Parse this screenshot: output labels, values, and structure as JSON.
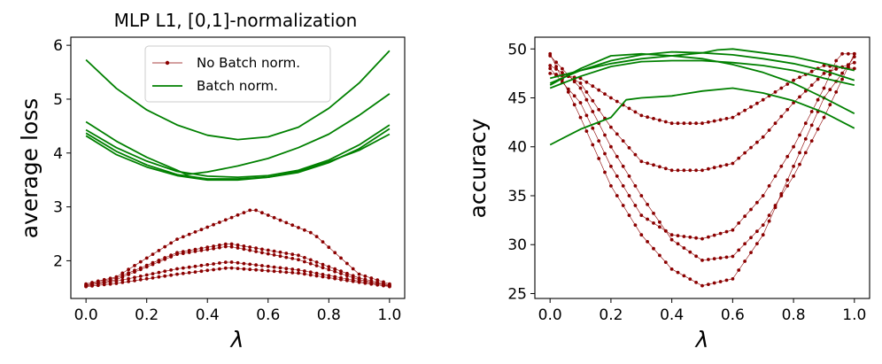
{
  "colors": {
    "no_bn": "#8b0000",
    "bn": "#008000"
  },
  "chart_data": [
    {
      "type": "line",
      "title": "MLP L1, [0,1]-normalization",
      "xlabel": "λ",
      "ylabel": "average loss",
      "xlim": [
        -0.05,
        1.05
      ],
      "ylim": [
        1.3,
        6.15
      ],
      "xticks": [
        "0.0",
        "0.2",
        "0.4",
        "0.6",
        "0.8",
        "1.0"
      ],
      "yticks": [
        "2",
        "3",
        "4",
        "5",
        "6"
      ],
      "legend": {
        "position": "top-center",
        "entries": [
          "No Batch norm.",
          "Batch norm."
        ]
      },
      "series": [
        {
          "name": "No Batch norm.",
          "style": "markers",
          "points": [
            [
              0.0,
              1.57
            ],
            [
              0.1,
              1.7
            ],
            [
              0.3,
              2.4
            ],
            [
              0.55,
              2.96
            ],
            [
              0.75,
              2.5
            ],
            [
              0.9,
              1.75
            ],
            [
              1.0,
              1.57
            ]
          ]
        },
        {
          "name": "No Batch norm.",
          "style": "markers",
          "points": [
            [
              0.0,
              1.55
            ],
            [
              0.1,
              1.68
            ],
            [
              0.3,
              2.15
            ],
            [
              0.47,
              2.32
            ],
            [
              0.7,
              2.1
            ],
            [
              0.9,
              1.68
            ],
            [
              1.0,
              1.55
            ]
          ]
        },
        {
          "name": "No Batch norm.",
          "style": "markers",
          "points": [
            [
              0.0,
              1.53
            ],
            [
              0.1,
              1.65
            ],
            [
              0.3,
              2.12
            ],
            [
              0.47,
              2.27
            ],
            [
              0.7,
              2.02
            ],
            [
              0.9,
              1.65
            ],
            [
              1.0,
              1.53
            ]
          ]
        },
        {
          "name": "No Batch norm.",
          "style": "markers",
          "points": [
            [
              0.0,
              1.54
            ],
            [
              0.1,
              1.62
            ],
            [
              0.3,
              1.85
            ],
            [
              0.47,
              1.98
            ],
            [
              0.7,
              1.83
            ],
            [
              0.9,
              1.62
            ],
            [
              1.0,
              1.54
            ]
          ]
        },
        {
          "name": "No Batch norm.",
          "style": "markers",
          "points": [
            [
              0.0,
              1.52
            ],
            [
              0.1,
              1.58
            ],
            [
              0.3,
              1.75
            ],
            [
              0.47,
              1.87
            ],
            [
              0.7,
              1.77
            ],
            [
              0.9,
              1.6
            ],
            [
              1.0,
              1.52
            ]
          ]
        },
        {
          "name": "Batch norm.",
          "style": "line",
          "points": [
            [
              0.0,
              5.73
            ],
            [
              0.1,
              5.2
            ],
            [
              0.2,
              4.8
            ],
            [
              0.3,
              4.52
            ],
            [
              0.4,
              4.33
            ],
            [
              0.5,
              4.25
            ],
            [
              0.6,
              4.3
            ],
            [
              0.7,
              4.48
            ],
            [
              0.8,
              4.83
            ],
            [
              0.9,
              5.3
            ],
            [
              1.0,
              5.9
            ]
          ]
        },
        {
          "name": "Batch norm.",
          "style": "line",
          "points": [
            [
              0.0,
              4.58
            ],
            [
              0.1,
              4.22
            ],
            [
              0.2,
              3.92
            ],
            [
              0.3,
              3.68
            ],
            [
              0.33,
              3.6
            ],
            [
              0.4,
              3.65
            ],
            [
              0.5,
              3.76
            ],
            [
              0.6,
              3.9
            ],
            [
              0.7,
              4.1
            ],
            [
              0.8,
              4.35
            ],
            [
              0.9,
              4.7
            ],
            [
              1.0,
              5.1
            ]
          ]
        },
        {
          "name": "Batch norm.",
          "style": "line",
          "points": [
            [
              0.0,
              4.43
            ],
            [
              0.1,
              4.1
            ],
            [
              0.2,
              3.85
            ],
            [
              0.3,
              3.66
            ],
            [
              0.4,
              3.57
            ],
            [
              0.5,
              3.55
            ],
            [
              0.6,
              3.58
            ],
            [
              0.7,
              3.68
            ],
            [
              0.8,
              3.87
            ],
            [
              0.9,
              4.15
            ],
            [
              1.0,
              4.52
            ]
          ]
        },
        {
          "name": "Batch norm.",
          "style": "line",
          "points": [
            [
              0.0,
              4.37
            ],
            [
              0.1,
              4.03
            ],
            [
              0.2,
              3.78
            ],
            [
              0.3,
              3.6
            ],
            [
              0.4,
              3.52
            ],
            [
              0.5,
              3.52
            ],
            [
              0.6,
              3.55
            ],
            [
              0.7,
              3.64
            ],
            [
              0.8,
              3.82
            ],
            [
              0.9,
              4.08
            ],
            [
              1.0,
              4.45
            ]
          ]
        },
        {
          "name": "Batch norm.",
          "style": "line",
          "points": [
            [
              0.0,
              4.32
            ],
            [
              0.1,
              3.97
            ],
            [
              0.2,
              3.74
            ],
            [
              0.3,
              3.58
            ],
            [
              0.4,
              3.5
            ],
            [
              0.5,
              3.5
            ],
            [
              0.6,
              3.55
            ],
            [
              0.7,
              3.66
            ],
            [
              0.8,
              3.84
            ],
            [
              0.9,
              4.05
            ],
            [
              1.0,
              4.35
            ]
          ]
        }
      ]
    },
    {
      "type": "line",
      "title": "",
      "xlabel": "λ",
      "ylabel": "accuracy",
      "xlim": [
        -0.05,
        1.05
      ],
      "ylim": [
        24.5,
        51.2
      ],
      "xticks": [
        "0.0",
        "0.2",
        "0.4",
        "0.6",
        "0.8",
        "1.0"
      ],
      "yticks": [
        "25",
        "30",
        "35",
        "40",
        "45",
        "50"
      ],
      "series": [
        {
          "name": "No Batch norm.",
          "style": "markers",
          "points": [
            [
              0.0,
              49.3
            ],
            [
              0.1,
              46
            ],
            [
              0.2,
              40
            ],
            [
              0.3,
              35
            ],
            [
              0.4,
              30.5
            ],
            [
              0.5,
              28.4
            ],
            [
              0.6,
              28.8
            ],
            [
              0.7,
              32
            ],
            [
              0.8,
              37
            ],
            [
              0.9,
              43
            ],
            [
              1.0,
              49.5
            ]
          ]
        },
        {
          "name": "No Batch norm.",
          "style": "markers",
          "points": [
            [
              0.0,
              49.5
            ],
            [
              0.1,
              43
            ],
            [
              0.2,
              36
            ],
            [
              0.3,
              31
            ],
            [
              0.4,
              27.5
            ],
            [
              0.5,
              25.8
            ],
            [
              0.6,
              26.5
            ],
            [
              0.7,
              31
            ],
            [
              0.8,
              38
            ],
            [
              0.9,
              45
            ],
            [
              1.0,
              49.2
            ]
          ]
        },
        {
          "name": "No Batch norm.",
          "style": "markers",
          "points": [
            [
              0.0,
              48
            ],
            [
              0.1,
              44.5
            ],
            [
              0.2,
              38
            ],
            [
              0.3,
              33
            ],
            [
              0.4,
              31
            ],
            [
              0.5,
              30.6
            ],
            [
              0.6,
              31.5
            ],
            [
              0.7,
              35
            ],
            [
              0.8,
              40
            ],
            [
              0.9,
              46
            ],
            [
              0.95,
              49.5
            ],
            [
              1.0,
              49.5
            ]
          ]
        },
        {
          "name": "No Batch norm.",
          "style": "markers",
          "points": [
            [
              0.0,
              48.3
            ],
            [
              0.1,
              46.5
            ],
            [
              0.2,
              42
            ],
            [
              0.3,
              38.5
            ],
            [
              0.4,
              37.6
            ],
            [
              0.5,
              37.6
            ],
            [
              0.6,
              38.3
            ],
            [
              0.7,
              41
            ],
            [
              0.8,
              44.5
            ],
            [
              0.9,
              47.5
            ],
            [
              1.0,
              48.6
            ]
          ]
        },
        {
          "name": "No Batch norm.",
          "style": "markers",
          "points": [
            [
              0.0,
              47.5
            ],
            [
              0.1,
              47
            ],
            [
              0.2,
              45
            ],
            [
              0.3,
              43.2
            ],
            [
              0.4,
              42.4
            ],
            [
              0.5,
              42.4
            ],
            [
              0.6,
              43
            ],
            [
              0.7,
              44.8
            ],
            [
              0.8,
              46.8
            ],
            [
              0.9,
              48.3
            ],
            [
              1.0,
              48
            ]
          ]
        },
        {
          "name": "Batch norm.",
          "style": "line",
          "points": [
            [
              0.0,
              47
            ],
            [
              0.1,
              47.8
            ],
            [
              0.2,
              48.5
            ],
            [
              0.3,
              49
            ],
            [
              0.4,
              49.3
            ],
            [
              0.5,
              49.6
            ],
            [
              0.55,
              49.9
            ],
            [
              0.6,
              50
            ],
            [
              0.7,
              49.6
            ],
            [
              0.8,
              49.2
            ],
            [
              0.9,
              48.5
            ],
            [
              1.0,
              47.8
            ]
          ]
        },
        {
          "name": "Batch norm.",
          "style": "line",
          "points": [
            [
              0.0,
              46.5
            ],
            [
              0.1,
              47.8
            ],
            [
              0.2,
              48.8
            ],
            [
              0.3,
              49.4
            ],
            [
              0.4,
              49.7
            ],
            [
              0.5,
              49.6
            ],
            [
              0.6,
              49.4
            ],
            [
              0.7,
              49
            ],
            [
              0.8,
              48.5
            ],
            [
              0.9,
              47.8
            ],
            [
              1.0,
              46.8
            ]
          ]
        },
        {
          "name": "Batch norm.",
          "style": "line",
          "points": [
            [
              0.0,
              46
            ],
            [
              0.1,
              47.2
            ],
            [
              0.2,
              48.2
            ],
            [
              0.3,
              48.7
            ],
            [
              0.4,
              48.8
            ],
            [
              0.5,
              48.8
            ],
            [
              0.6,
              48.6
            ],
            [
              0.7,
              48.3
            ],
            [
              0.8,
              47.8
            ],
            [
              0.9,
              47
            ],
            [
              1.0,
              46.3
            ]
          ]
        },
        {
          "name": "Batch norm.",
          "style": "line",
          "points": [
            [
              0.0,
              46.3
            ],
            [
              0.1,
              48
            ],
            [
              0.2,
              49.3
            ],
            [
              0.3,
              49.5
            ],
            [
              0.4,
              49.3
            ],
            [
              0.5,
              49
            ],
            [
              0.6,
              48.4
            ],
            [
              0.7,
              47.6
            ],
            [
              0.8,
              46.5
            ],
            [
              0.9,
              45
            ],
            [
              1.0,
              43.4
            ]
          ]
        },
        {
          "name": "Batch norm.",
          "style": "line",
          "points": [
            [
              0.0,
              40.2
            ],
            [
              0.1,
              41.8
            ],
            [
              0.2,
              43
            ],
            [
              0.25,
              44.8
            ],
            [
              0.3,
              45
            ],
            [
              0.4,
              45.2
            ],
            [
              0.5,
              45.7
            ],
            [
              0.6,
              46
            ],
            [
              0.7,
              45.5
            ],
            [
              0.8,
              44.7
            ],
            [
              0.9,
              43.5
            ],
            [
              1.0,
              41.9
            ]
          ]
        }
      ]
    }
  ]
}
